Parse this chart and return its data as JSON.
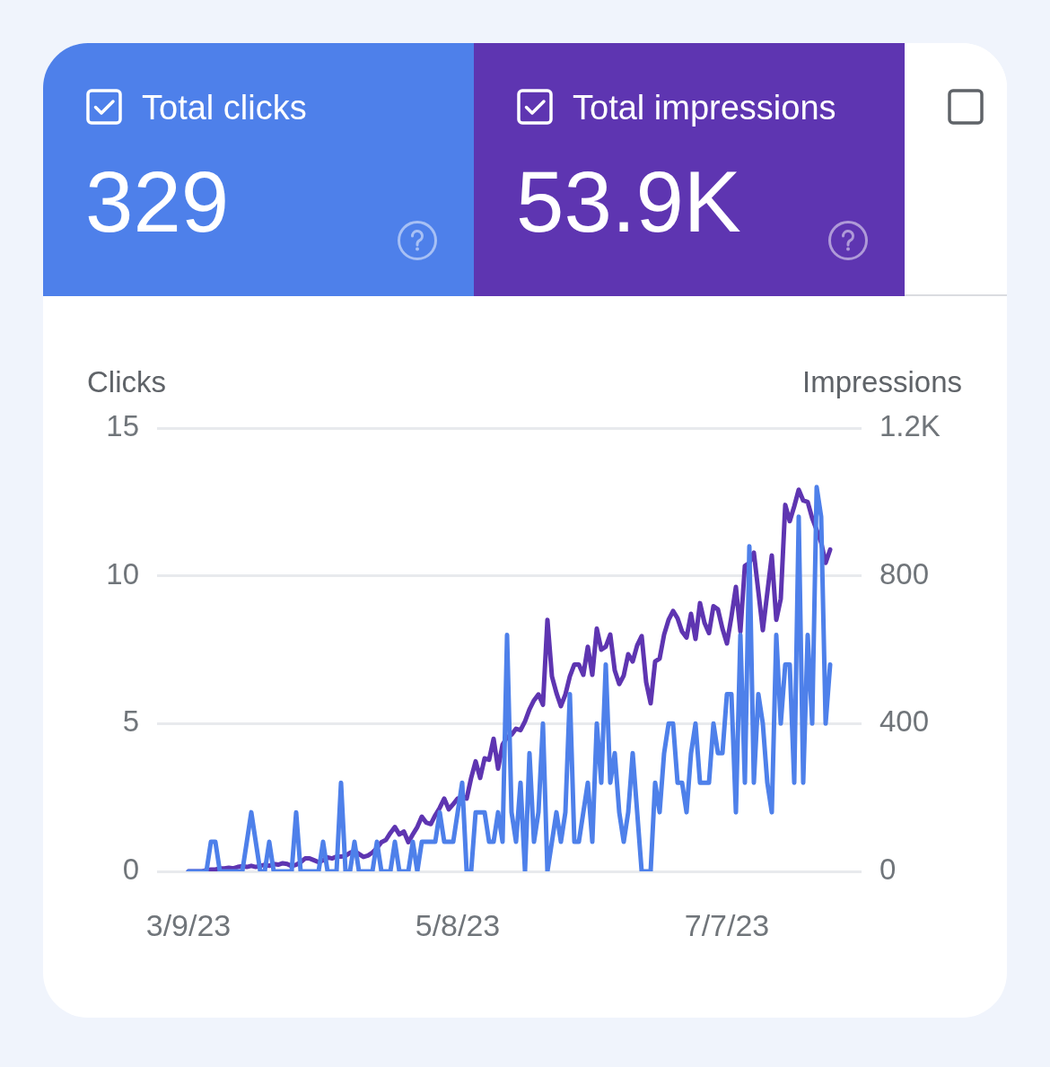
{
  "chart_data": {
    "type": "line",
    "x": [
      "2023-03-09",
      "2023-03-10",
      "2023-03-11",
      "2023-03-12",
      "2023-03-13",
      "2023-03-14",
      "2023-03-15",
      "2023-03-16",
      "2023-03-17",
      "2023-03-18",
      "2023-03-19",
      "2023-03-20",
      "2023-03-21",
      "2023-03-22",
      "2023-03-23",
      "2023-03-24",
      "2023-03-25",
      "2023-03-26",
      "2023-03-27",
      "2023-03-28",
      "2023-03-29",
      "2023-03-30",
      "2023-03-31",
      "2023-04-01",
      "2023-04-02",
      "2023-04-03",
      "2023-04-04",
      "2023-04-05",
      "2023-04-06",
      "2023-04-07",
      "2023-04-08",
      "2023-04-09",
      "2023-04-10",
      "2023-04-11",
      "2023-04-12",
      "2023-04-13",
      "2023-04-14",
      "2023-04-15",
      "2023-04-16",
      "2023-04-17",
      "2023-04-18",
      "2023-04-19",
      "2023-04-20",
      "2023-04-21",
      "2023-04-22",
      "2023-04-23",
      "2023-04-24",
      "2023-04-25",
      "2023-04-26",
      "2023-04-27",
      "2023-04-28",
      "2023-04-29",
      "2023-04-30",
      "2023-05-01",
      "2023-05-02",
      "2023-05-03",
      "2023-05-04",
      "2023-05-05",
      "2023-05-06",
      "2023-05-07",
      "2023-05-08",
      "2023-05-09",
      "2023-05-10",
      "2023-05-11",
      "2023-05-12",
      "2023-05-13",
      "2023-05-14",
      "2023-05-15",
      "2023-05-16",
      "2023-05-17",
      "2023-05-18",
      "2023-05-19",
      "2023-05-20",
      "2023-05-21",
      "2023-05-22",
      "2023-05-23",
      "2023-05-24",
      "2023-05-25",
      "2023-05-26",
      "2023-05-27",
      "2023-05-28",
      "2023-05-29",
      "2023-05-30",
      "2023-05-31",
      "2023-06-01",
      "2023-06-02",
      "2023-06-03",
      "2023-06-04",
      "2023-06-05",
      "2023-06-06",
      "2023-06-07",
      "2023-06-08",
      "2023-06-09",
      "2023-06-10",
      "2023-06-11",
      "2023-06-12",
      "2023-06-13",
      "2023-06-14",
      "2023-06-15",
      "2023-06-16",
      "2023-06-17",
      "2023-06-18",
      "2023-06-19",
      "2023-06-20",
      "2023-06-21",
      "2023-06-22",
      "2023-06-23",
      "2023-06-24",
      "2023-06-25",
      "2023-06-26",
      "2023-06-27",
      "2023-06-28",
      "2023-06-29",
      "2023-06-30",
      "2023-07-01",
      "2023-07-02",
      "2023-07-03",
      "2023-07-04",
      "2023-07-05",
      "2023-07-06",
      "2023-07-07",
      "2023-07-08",
      "2023-07-09",
      "2023-07-10",
      "2023-07-11",
      "2023-07-12",
      "2023-07-13",
      "2023-07-14",
      "2023-07-15",
      "2023-07-16",
      "2023-07-17",
      "2023-07-18",
      "2023-07-19",
      "2023-07-20",
      "2023-07-21",
      "2023-07-22",
      "2023-07-23",
      "2023-07-24",
      "2023-07-25",
      "2023-07-26",
      "2023-07-27",
      "2023-07-28",
      "2023-07-29",
      "2023-07-30"
    ],
    "xlim": [
      "2023-03-02",
      "2023-08-06"
    ],
    "xticks": [
      {
        "value": "2023-03-09",
        "label": "3/9/23"
      },
      {
        "value": "2023-05-08",
        "label": "5/8/23"
      },
      {
        "value": "2023-07-07",
        "label": "7/7/23"
      }
    ],
    "ylabel": "Clicks",
    "y2label": "Impressions",
    "ylim": [
      0,
      15
    ],
    "yticks": [
      0,
      5,
      10,
      15
    ],
    "y2lim": [
      0,
      1200
    ],
    "y2ticks": [
      0,
      400,
      800,
      {
        "value": 1200,
        "label": "1.2K"
      }
    ],
    "grid": "y",
    "legend": "top",
    "annotations": [
      "329",
      "53.9K"
    ],
    "series": [
      {
        "name": "Total clicks",
        "color": "#4e80ea",
        "values": [
          0,
          0,
          0,
          0,
          0,
          1,
          1,
          0,
          0,
          0,
          0,
          0,
          0,
          1,
          2,
          1,
          0,
          0,
          1,
          0,
          0,
          0,
          0,
          0,
          2,
          0,
          0,
          0,
          0,
          0,
          1,
          0,
          0,
          0,
          3,
          0,
          0,
          1,
          0,
          0,
          0,
          0,
          1,
          0,
          0,
          0,
          1,
          0,
          0,
          0,
          1,
          0,
          1,
          1,
          1,
          1,
          2,
          1,
          1,
          1,
          2,
          3,
          0,
          0,
          2,
          2,
          2,
          1,
          1,
          2,
          1,
          8,
          2,
          1,
          3,
          0,
          4,
          1,
          2,
          5,
          0,
          1,
          2,
          1,
          2,
          6,
          1,
          1,
          2,
          3,
          1,
          5,
          3,
          7,
          3,
          4,
          2,
          1,
          2,
          4,
          2,
          0,
          0,
          0,
          3,
          2,
          4,
          5,
          5,
          3,
          3,
          2,
          4,
          5,
          3,
          3,
          3,
          5,
          4,
          4,
          6,
          6,
          2,
          8,
          3,
          11,
          3,
          6,
          5,
          3,
          2,
          8,
          5,
          7,
          7,
          3,
          12,
          3,
          8,
          5,
          13,
          12,
          5,
          7
        ]
      },
      {
        "name": "Total impressions",
        "color": "#5e35b1",
        "axis": "y2",
        "values": [
          0,
          0,
          0,
          0,
          3,
          5,
          5,
          8,
          8,
          10,
          8,
          12,
          14,
          12,
          15,
          12,
          15,
          18,
          15,
          20,
          18,
          22,
          20,
          14,
          18,
          25,
          35,
          35,
          30,
          25,
          30,
          38,
          35,
          40,
          40,
          42,
          50,
          55,
          47,
          39,
          43,
          51,
          63,
          79,
          85,
          104,
          120,
          100,
          108,
          79,
          100,
          120,
          148,
          132,
          128,
          152,
          172,
          197,
          168,
          182,
          197,
          201,
          197,
          253,
          298,
          253,
          306,
          302,
          359,
          278,
          343,
          363,
          370,
          386,
          382,
          406,
          439,
          463,
          479,
          451,
          681,
          528,
          483,
          447,
          479,
          528,
          560,
          560,
          532,
          608,
          532,
          657,
          600,
          608,
          641,
          544,
          507,
          530,
          588,
          568,
          612,
          637,
          512,
          455,
          568,
          576,
          641,
          681,
          705,
          685,
          649,
          633,
          697,
          629,
          726,
          673,
          645,
          718,
          709,
          657,
          617,
          689,
          770,
          649,
          827,
          835,
          863,
          758,
          653,
          754,
          855,
          681,
          738,
          992,
          948,
          988,
          1033,
          1004,
          1000,
          956,
          924,
          890,
          835,
          871
        ]
      }
    ]
  }
}
